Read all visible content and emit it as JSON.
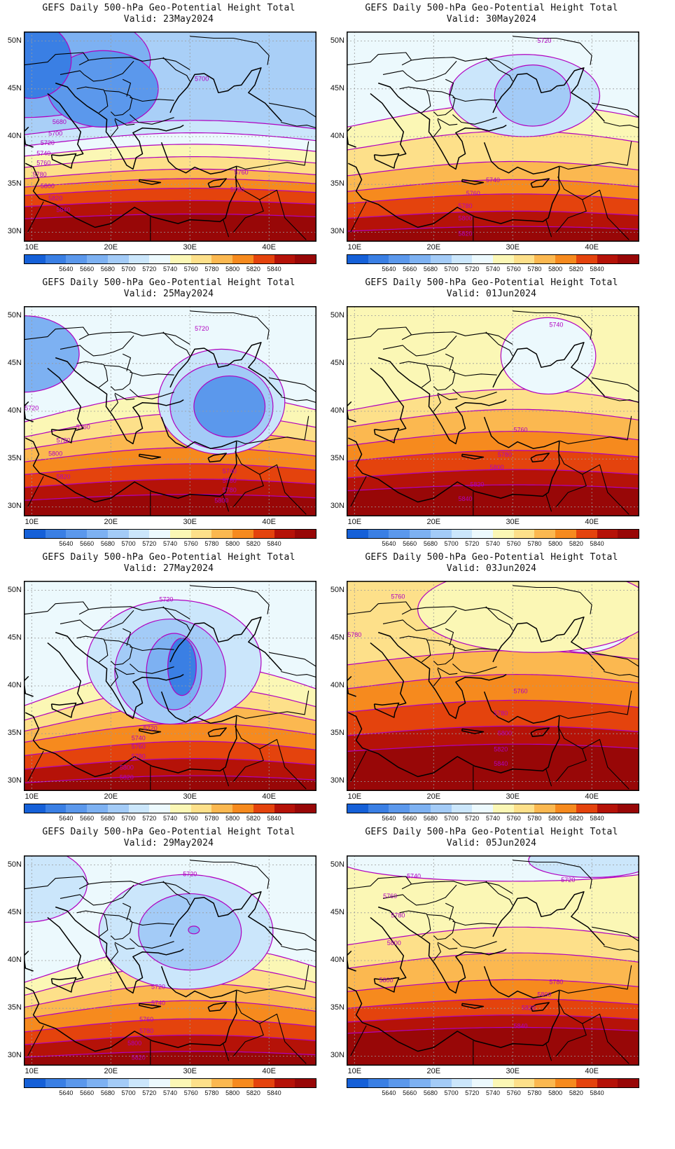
{
  "figure": {
    "title": "GEFS Daily 500-hPa Geo-Potential Height Total",
    "lon_ticks": [
      "10E",
      "20E",
      "30E",
      "40E"
    ],
    "lat_ticks": [
      "50N",
      "45N",
      "40N",
      "35N",
      "30N"
    ],
    "extent": {
      "lon": [
        9,
        46
      ],
      "lat": [
        29,
        51
      ]
    }
  },
  "colorbar": {
    "levels": [
      "5640",
      "5660",
      "5680",
      "5700",
      "5720",
      "5740",
      "5760",
      "5780",
      "5800",
      "5820",
      "5840"
    ],
    "colors": [
      "#1560d8",
      "#3a7fe4",
      "#5b98ec",
      "#7db1f2",
      "#a3cbf7",
      "#cbe6fb",
      "#ecf9fd",
      "#fbf7b5",
      "#fde08a",
      "#fbb850",
      "#f68a1e",
      "#e4430d",
      "#b51208",
      "#980707"
    ]
  },
  "contour_color": "#b000c0",
  "panels": [
    {
      "id": "p1",
      "valid": "Valid: 23May2024",
      "base": "#a9cff7",
      "blobs": [
        {
          "cx": 9,
          "cy": 48,
          "rx": 16,
          "ry": 6,
          "c": "#7db1f2"
        },
        {
          "cx": 19,
          "cy": 45,
          "rx": 7,
          "ry": 4,
          "c": "#5b98ec"
        },
        {
          "cx": 10,
          "cy": 48,
          "rx": 5,
          "ry": 4,
          "c": "#3a7fe4"
        }
      ],
      "bands": [
        {
          "lat": 40.5,
          "amp": 1.2,
          "c": "#cbe6fb"
        },
        {
          "lat": 39.3,
          "amp": 1.1,
          "c": "#ecf9fd"
        },
        {
          "lat": 38.2,
          "amp": 1.0,
          "c": "#fbf7b5"
        },
        {
          "lat": 37.0,
          "amp": 0.9,
          "c": "#fde08a"
        },
        {
          "lat": 35.8,
          "amp": 0.8,
          "c": "#fbb850"
        },
        {
          "lat": 34.9,
          "amp": 0.7,
          "c": "#f68a1e"
        },
        {
          "lat": 34.0,
          "amp": 0.6,
          "c": "#e4430d"
        },
        {
          "lat": 32.8,
          "amp": 0.5,
          "c": "#b51208"
        },
        {
          "lat": 31.5,
          "amp": 0.4,
          "c": "#980707"
        }
      ],
      "labels": [
        {
          "t": "5700",
          "lon": 31.5,
          "lat": 46.0
        },
        {
          "t": "5680",
          "lon": 13.5,
          "lat": 41.5
        },
        {
          "t": "5700",
          "lon": 13.0,
          "lat": 40.3
        },
        {
          "t": "5720",
          "lon": 12.0,
          "lat": 39.3
        },
        {
          "t": "5740",
          "lon": 11.5,
          "lat": 38.2
        },
        {
          "t": "5760",
          "lon": 11.5,
          "lat": 37.2
        },
        {
          "t": "5780",
          "lon": 11.0,
          "lat": 36.0
        },
        {
          "t": "5800",
          "lon": 12.0,
          "lat": 34.8
        },
        {
          "t": "5820",
          "lon": 13.0,
          "lat": 33.5
        },
        {
          "t": "5840",
          "lon": 14.0,
          "lat": 32.3
        },
        {
          "t": "5760",
          "lon": 36.5,
          "lat": 36.2
        },
        {
          "t": "5780",
          "lon": 36.0,
          "lat": 34.4
        }
      ]
    },
    {
      "id": "p2",
      "valid": "Valid: 30May2024",
      "base": "#ecf9fd",
      "blobs": [
        {
          "cx": 31.5,
          "cy": 44.3,
          "rx": 9.5,
          "ry": 4.3,
          "c": "#cbe6fb"
        },
        {
          "cx": 32.5,
          "cy": 44.3,
          "rx": 4.8,
          "ry": 3.2,
          "c": "#a3cbf7"
        }
      ],
      "bands": [
        {
          "lat": 41.5,
          "amp": 2.0,
          "c": "#fbf7b5"
        },
        {
          "lat": 39.0,
          "amp": 1.6,
          "c": "#fde08a"
        },
        {
          "lat": 36.2,
          "amp": 1.2,
          "c": "#fbb850"
        },
        {
          "lat": 34.5,
          "amp": 1.0,
          "c": "#f68a1e"
        },
        {
          "lat": 33.2,
          "amp": 0.8,
          "c": "#e4430d"
        },
        {
          "lat": 31.6,
          "amp": 0.6,
          "c": "#b51208"
        },
        {
          "lat": 30.2,
          "amp": 0.4,
          "c": "#980707"
        }
      ],
      "labels": [
        {
          "t": "5720",
          "lon": 34.0,
          "lat": 50.0
        },
        {
          "t": "5740",
          "lon": 27.5,
          "lat": 35.4
        },
        {
          "t": "5760",
          "lon": 25.0,
          "lat": 34.0
        },
        {
          "t": "5780",
          "lon": 24.0,
          "lat": 32.7
        },
        {
          "t": "5800",
          "lon": 24.0,
          "lat": 31.4
        },
        {
          "t": "5820",
          "lon": 24.0,
          "lat": 29.8
        }
      ]
    },
    {
      "id": "p3",
      "valid": "Valid: 25May2024",
      "base": "#ecf9fd",
      "blobs": [
        {
          "cx": 34,
          "cy": 41,
          "rx": 8,
          "ry": 5.5,
          "c": "#cbe6fb"
        },
        {
          "cx": 34,
          "cy": 40.5,
          "rx": 6.5,
          "ry": 4.5,
          "c": "#a3cbf7"
        },
        {
          "cx": 35,
          "cy": 40.5,
          "rx": 4.5,
          "ry": 3.2,
          "c": "#5b98ec"
        },
        {
          "cx": 9,
          "cy": 46,
          "rx": 7,
          "ry": 4,
          "c": "#7db1f2"
        }
      ],
      "bands": [
        {
          "lat": 39.5,
          "amp": 2.5,
          "c": "#fbf7b5"
        },
        {
          "lat": 37.8,
          "amp": 2.0,
          "c": "#fde08a"
        },
        {
          "lat": 36.4,
          "amp": 1.6,
          "c": "#fbb850"
        },
        {
          "lat": 35.0,
          "amp": 1.2,
          "c": "#f68a1e"
        },
        {
          "lat": 33.6,
          "amp": 0.9,
          "c": "#e4430d"
        },
        {
          "lat": 32.2,
          "amp": 0.7,
          "c": "#b51208"
        },
        {
          "lat": 30.8,
          "amp": 0.5,
          "c": "#980707"
        }
      ],
      "labels": [
        {
          "t": "5720",
          "lon": 31.5,
          "lat": 48.6
        },
        {
          "t": "5720",
          "lon": 10.0,
          "lat": 40.3
        },
        {
          "t": "5760",
          "lon": 16.5,
          "lat": 38.3
        },
        {
          "t": "5780",
          "lon": 14.0,
          "lat": 36.9
        },
        {
          "t": "5800",
          "lon": 13.0,
          "lat": 35.5
        },
        {
          "t": "5820",
          "lon": 14.0,
          "lat": 33.1
        },
        {
          "t": "5740",
          "lon": 35.0,
          "lat": 33.7
        },
        {
          "t": "5760",
          "lon": 35.0,
          "lat": 32.7
        },
        {
          "t": "5780",
          "lon": 35.0,
          "lat": 31.7
        },
        {
          "t": "5800",
          "lon": 34.0,
          "lat": 30.6
        }
      ]
    },
    {
      "id": "p4",
      "valid": "Valid: 01Jun2024",
      "base": "#fbf7b5",
      "blobs": [
        {
          "cx": 34.5,
          "cy": 45.8,
          "rx": 6,
          "ry": 4,
          "c": "#ecf9fd"
        }
      ],
      "bands": [
        {
          "lat": 40.5,
          "amp": 1.8,
          "c": "#fde08a"
        },
        {
          "lat": 38.7,
          "amp": 1.5,
          "c": "#fbb850"
        },
        {
          "lat": 36.7,
          "amp": 1.2,
          "c": "#f68a1e"
        },
        {
          "lat": 35.0,
          "amp": 0.9,
          "c": "#e4430d"
        },
        {
          "lat": 33.2,
          "amp": 0.7,
          "c": "#b51208"
        },
        {
          "lat": 31.8,
          "amp": 0.5,
          "c": "#980707"
        }
      ],
      "labels": [
        {
          "t": "5740",
          "lon": 35.5,
          "lat": 49.0
        },
        {
          "t": "5760",
          "lon": 31.0,
          "lat": 38.0
        },
        {
          "t": "5780",
          "lon": 29.0,
          "lat": 35.4
        },
        {
          "t": "5800",
          "lon": 28.0,
          "lat": 34.1
        },
        {
          "t": "5820",
          "lon": 25.5,
          "lat": 32.3
        },
        {
          "t": "5840",
          "lon": 24.0,
          "lat": 30.8
        }
      ]
    },
    {
      "id": "p5",
      "valid": "Valid: 27May2024",
      "base": "#ecf9fd",
      "blobs": [
        {
          "cx": 28,
          "cy": 42.5,
          "rx": 11,
          "ry": 6.5,
          "c": "#cbe6fb"
        },
        {
          "cx": 27.5,
          "cy": 41.5,
          "rx": 7,
          "ry": 5.5,
          "c": "#a3cbf7"
        },
        {
          "cx": 28,
          "cy": 41.5,
          "rx": 3.5,
          "ry": 4,
          "c": "#7db1f2"
        },
        {
          "cx": 29,
          "cy": 42,
          "rx": 1.8,
          "ry": 3,
          "c": "#3a7fe4"
        }
      ],
      "bands": [
        {
          "lat": 38.8,
          "amp": 3.5,
          "c": "#fbf7b5"
        },
        {
          "lat": 37.1,
          "amp": 2.8,
          "c": "#fde08a"
        },
        {
          "lat": 35.8,
          "amp": 2.2,
          "c": "#fbb850"
        },
        {
          "lat": 34.5,
          "amp": 1.6,
          "c": "#f68a1e"
        },
        {
          "lat": 33.0,
          "amp": 1.2,
          "c": "#e4430d"
        },
        {
          "lat": 31.5,
          "amp": 0.9,
          "c": "#b51208"
        },
        {
          "lat": 30.0,
          "amp": 0.6,
          "c": "#980707"
        }
      ],
      "labels": [
        {
          "t": "5720",
          "lon": 27.0,
          "lat": 49.0
        },
        {
          "t": "5720",
          "lon": 25.0,
          "lat": 35.5
        },
        {
          "t": "5740",
          "lon": 23.5,
          "lat": 34.5
        },
        {
          "t": "5760",
          "lon": 23.5,
          "lat": 33.6
        },
        {
          "t": "5780",
          "lon": 23.5,
          "lat": 32.6
        },
        {
          "t": "5800",
          "lon": 22.0,
          "lat": 31.4
        },
        {
          "t": "5820",
          "lon": 22.0,
          "lat": 30.4
        }
      ]
    },
    {
      "id": "p6",
      "valid": "Valid: 03Jun2024",
      "base": "#fde08a",
      "blobs": [
        {
          "cx": 39,
          "cy": 47.5,
          "rx": 7,
          "ry": 4,
          "c": "#ecf9fd"
        },
        {
          "cx": 33,
          "cy": 48,
          "rx": 15,
          "ry": 4.5,
          "c": "#fbf7b5"
        }
      ],
      "bands": [
        {
          "lat": 42.5,
          "amp": 1.2,
          "c": "#fbb850"
        },
        {
          "lat": 40.0,
          "amp": 1.2,
          "c": "#f68a1e"
        },
        {
          "lat": 37.5,
          "amp": 1.0,
          "c": "#e4430d"
        },
        {
          "lat": 35.0,
          "amp": 0.8,
          "c": "#b51208"
        },
        {
          "lat": 33.3,
          "amp": 0.6,
          "c": "#980707"
        }
      ],
      "labels": [
        {
          "t": "5760",
          "lon": 15.5,
          "lat": 49.3
        },
        {
          "t": "5780",
          "lon": 10.0,
          "lat": 45.3
        },
        {
          "t": "5760",
          "lon": 31.0,
          "lat": 39.4
        },
        {
          "t": "5780",
          "lon": 28.5,
          "lat": 37.1
        },
        {
          "t": "5800",
          "lon": 29.0,
          "lat": 35.0
        },
        {
          "t": "5820",
          "lon": 28.5,
          "lat": 33.3
        },
        {
          "t": "5840",
          "lon": 28.5,
          "lat": 31.8
        }
      ]
    },
    {
      "id": "p7",
      "valid": "Valid: 29May2024",
      "base": "#ecf9fd",
      "blobs": [
        {
          "cx": 29.5,
          "cy": 43,
          "rx": 11,
          "ry": 6,
          "c": "#cbe6fb"
        },
        {
          "cx": 30,
          "cy": 43,
          "rx": 6.5,
          "ry": 4,
          "c": "#a3cbf7"
        },
        {
          "cx": 30.5,
          "cy": 43.2,
          "rx": 0.7,
          "ry": 0.4,
          "c": "#7db1f2"
        },
        {
          "cx": 9,
          "cy": 48,
          "rx": 8,
          "ry": 4,
          "c": "#cbe6fb"
        }
      ],
      "bands": [
        {
          "lat": 38.5,
          "amp": 3.2,
          "c": "#fbf7b5"
        },
        {
          "lat": 37.0,
          "amp": 2.6,
          "c": "#fde08a"
        },
        {
          "lat": 35.6,
          "amp": 2.0,
          "c": "#fbb850"
        },
        {
          "lat": 34.3,
          "amp": 1.5,
          "c": "#f68a1e"
        },
        {
          "lat": 32.8,
          "amp": 1.1,
          "c": "#e4430d"
        },
        {
          "lat": 31.4,
          "amp": 0.8,
          "c": "#b51208"
        },
        {
          "lat": 30.0,
          "amp": 0.5,
          "c": "#980707"
        }
      ],
      "labels": [
        {
          "t": "5720",
          "lon": 30.0,
          "lat": 49.0
        },
        {
          "t": "5720",
          "lon": 26.0,
          "lat": 37.2
        },
        {
          "t": "5740",
          "lon": 26.0,
          "lat": 35.5
        },
        {
          "t": "5760",
          "lon": 24.5,
          "lat": 33.8
        },
        {
          "t": "5780",
          "lon": 24.5,
          "lat": 32.6
        },
        {
          "t": "5800",
          "lon": 23.0,
          "lat": 31.3
        },
        {
          "t": "5820",
          "lon": 23.5,
          "lat": 29.8
        }
      ]
    },
    {
      "id": "p8",
      "valid": "Valid: 05Jun2024",
      "base": "#fbf7b5",
      "blobs": [
        {
          "cx": 30,
          "cy": 50.5,
          "rx": 22,
          "ry": 2.2,
          "c": "#ecf9fd"
        },
        {
          "cx": 40,
          "cy": 50.5,
          "rx": 8,
          "ry": 1.8,
          "c": "#cbe6fb"
        }
      ],
      "bands": [
        {
          "lat": 42.0,
          "amp": 1.5,
          "c": "#fde08a"
        },
        {
          "lat": 39.5,
          "amp": 1.3,
          "c": "#fbb850"
        },
        {
          "lat": 37.0,
          "amp": 1.0,
          "c": "#f68a1e"
        },
        {
          "lat": 35.2,
          "amp": 0.8,
          "c": "#e4430d"
        },
        {
          "lat": 33.7,
          "amp": 0.6,
          "c": "#b51208"
        },
        {
          "lat": 32.5,
          "amp": 0.5,
          "c": "#980707"
        }
      ],
      "labels": [
        {
          "t": "5740",
          "lon": 17.5,
          "lat": 48.8
        },
        {
          "t": "5720",
          "lon": 37.0,
          "lat": 48.4
        },
        {
          "t": "5760",
          "lon": 14.5,
          "lat": 46.7
        },
        {
          "t": "5780",
          "lon": 15.5,
          "lat": 44.7
        },
        {
          "t": "5800",
          "lon": 15.0,
          "lat": 41.8
        },
        {
          "t": "5800",
          "lon": 14.0,
          "lat": 37.9
        },
        {
          "t": "5780",
          "lon": 35.5,
          "lat": 37.7
        },
        {
          "t": "5800",
          "lon": 34.0,
          "lat": 36.4
        },
        {
          "t": "5820",
          "lon": 32.0,
          "lat": 35.0
        },
        {
          "t": "5840",
          "lon": 31.0,
          "lat": 33.1
        }
      ]
    }
  ]
}
